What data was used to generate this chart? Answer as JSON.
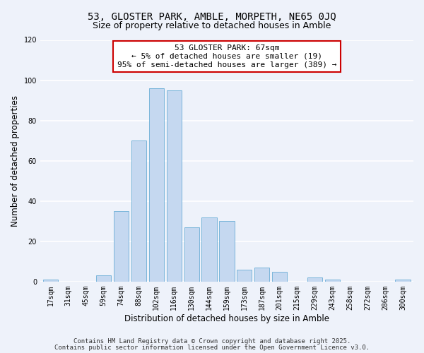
{
  "title": "53, GLOSTER PARK, AMBLE, MORPETH, NE65 0JQ",
  "subtitle": "Size of property relative to detached houses in Amble",
  "xlabel": "Distribution of detached houses by size in Amble",
  "ylabel": "Number of detached properties",
  "bar_labels": [
    "17sqm",
    "31sqm",
    "45sqm",
    "59sqm",
    "74sqm",
    "88sqm",
    "102sqm",
    "116sqm",
    "130sqm",
    "144sqm",
    "159sqm",
    "173sqm",
    "187sqm",
    "201sqm",
    "215sqm",
    "229sqm",
    "243sqm",
    "258sqm",
    "272sqm",
    "286sqm",
    "300sqm"
  ],
  "bar_values": [
    1,
    0,
    0,
    3,
    35,
    70,
    96,
    95,
    27,
    32,
    30,
    6,
    7,
    5,
    0,
    2,
    1,
    0,
    0,
    0,
    1
  ],
  "bar_color": "#c5d8f0",
  "bar_edge_color": "#6aaed6",
  "ylim": [
    0,
    120
  ],
  "yticks": [
    0,
    20,
    40,
    60,
    80,
    100,
    120
  ],
  "annotation_text": "53 GLOSTER PARK: 67sqm\n← 5% of detached houses are smaller (19)\n95% of semi-detached houses are larger (389) →",
  "annotation_box_color": "#ffffff",
  "annotation_box_edge_color": "#cc0000",
  "footnote1": "Contains HM Land Registry data © Crown copyright and database right 2025.",
  "footnote2": "Contains public sector information licensed under the Open Government Licence v3.0.",
  "bg_color": "#eef2fa",
  "grid_color": "#ffffff",
  "title_fontsize": 10,
  "subtitle_fontsize": 9,
  "axis_label_fontsize": 8.5,
  "tick_fontsize": 7,
  "annotation_fontsize": 8,
  "footnote_fontsize": 6.5
}
